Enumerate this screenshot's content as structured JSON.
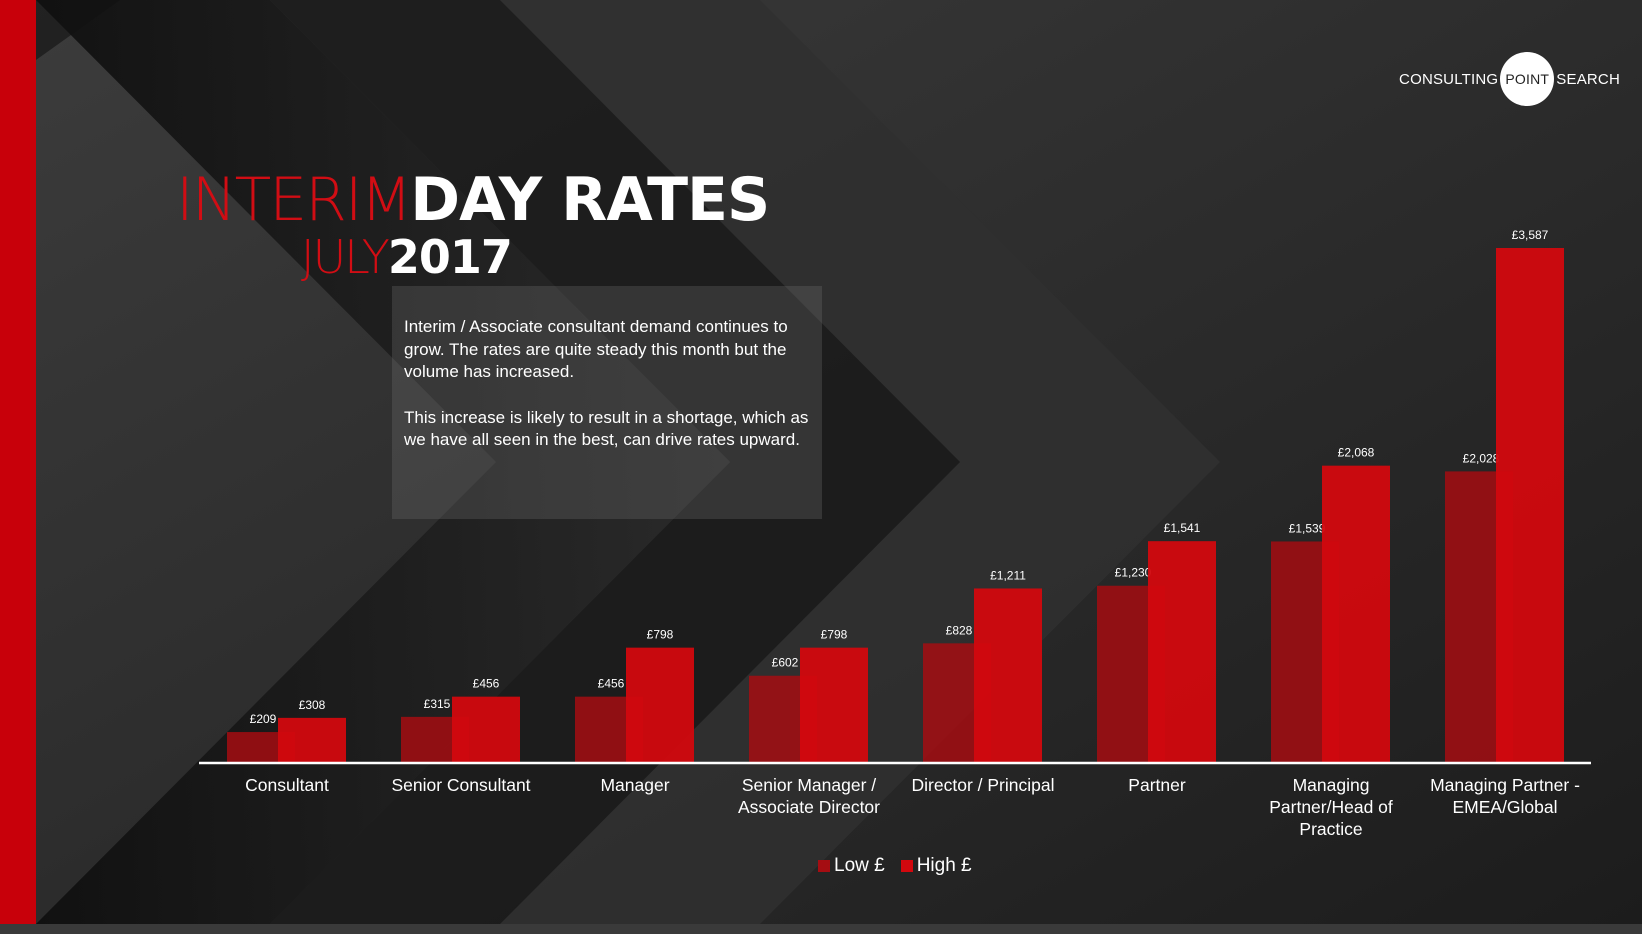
{
  "brand": {
    "left": "CONSULTING",
    "center": "POINT",
    "right": "SEARCH"
  },
  "title": {
    "thin1": "INTERIM",
    "bold1": "DAY RATES",
    "thin2": "JULY",
    "bold2": "2017"
  },
  "description": {
    "p1": "Interim / Associate consultant demand continues to grow.  The rates are quite steady this month but the volume has increased.",
    "p2": "This increase is likely to result in a shortage, which as we have all seen in the best, can drive rates upward."
  },
  "colors": {
    "accent": "#c8000a",
    "low": "#a50d12",
    "high": "#d2080e",
    "background": "#262626"
  },
  "chart_data": {
    "type": "bar",
    "categories": [
      "Consultant",
      "Senior Consultant",
      "Manager",
      "Senior Manager / Associate Director",
      "Director / Principal",
      "Partner",
      "Managing Partner/Head of Practice",
      "Managing Partner - EMEA/Global"
    ],
    "series": [
      {
        "name": "Low £",
        "values": [
          209,
          315,
          456,
          602,
          828,
          1230,
          1539,
          2028
        ],
        "labels": [
          "£209",
          "£315",
          "£456",
          "£602",
          "£828",
          "£1,230",
          "£1,539",
          "£2,028"
        ]
      },
      {
        "name": "High £",
        "values": [
          308,
          456,
          798,
          798,
          1211,
          1541,
          2068,
          3587
        ],
        "labels": [
          "£308",
          "£456",
          "£798",
          "£798",
          "£1,211",
          "£1,541",
          "£2,068",
          "£3,587"
        ]
      }
    ],
    "ylim": [
      0,
      3587
    ],
    "grid": false,
    "legend_position": "bottom"
  }
}
